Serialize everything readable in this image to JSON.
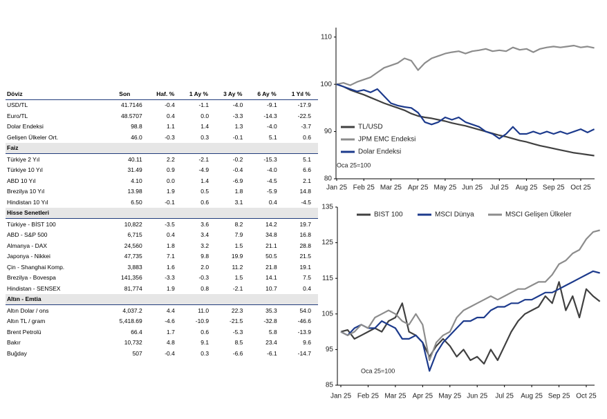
{
  "table": {
    "header": [
      "Döviz",
      "Son",
      "Haf. %",
      "1 Ay %",
      "3 Ay %",
      "6 Ay %",
      "1 Yıl %"
    ],
    "groups": [
      {
        "rows": [
          [
            "USD/TL",
            "41.7146",
            "-0.4",
            "-1.1",
            "-4.0",
            "-9.1",
            "-17.9"
          ],
          [
            "Euro/TL",
            "48.5707",
            "0.4",
            "0.0",
            "-3.3",
            "-14.3",
            "-22.5"
          ],
          [
            "Dolar Endeksi",
            "98.8",
            "1.1",
            "1.4",
            "1.3",
            "-4.0",
            "-3.7"
          ],
          [
            "Gelişen Ülkeler Ort.",
            "46.0",
            "-0.3",
            "0.3",
            "-0.1",
            "5.1",
            "0.6"
          ]
        ]
      },
      {
        "title": "Faiz",
        "rows": [
          [
            "Türkiye 2 Yıl",
            "40.11",
            "2.2",
            "-2.1",
            "-0.2",
            "-15.3",
            "5.1"
          ],
          [
            "Türkiye 10 Yıl",
            "31.49",
            "0.9",
            "-4.9",
            "-0.4",
            "-4.0",
            "6.6"
          ],
          [
            "ABD 10 Yıl",
            "4.10",
            "0.0",
            "1.4",
            "-6.9",
            "-4.5",
            "2.1"
          ],
          [
            "Brezilya 10 Yıl",
            "13.98",
            "1.9",
            "0.5",
            "1.8",
            "-5.9",
            "14.8"
          ],
          [
            "Hindistan 10 Yıl",
            "6.50",
            "-0.1",
            "0.6",
            "3.1",
            "0.4",
            "-4.5"
          ]
        ]
      },
      {
        "title": "Hisse Senetleri",
        "rows": [
          [
            "Türkiye - BİST 100",
            "10,822",
            "-3.5",
            "3.6",
            "8.2",
            "14.2",
            "19.7"
          ],
          [
            "ABD - S&P 500",
            "6,715",
            "0.4",
            "3.4",
            "7.9",
            "34.8",
            "16.8"
          ],
          [
            "Almanya - DAX",
            "24,560",
            "1.8",
            "3.2",
            "1.5",
            "21.1",
            "28.8"
          ],
          [
            "Japonya - Nikkei",
            "47,735",
            "7.1",
            "9.8",
            "19.9",
            "50.5",
            "21.5"
          ],
          [
            "Çin - Shanghai Komp.",
            "3,883",
            "1.6",
            "2.0",
            "11.2",
            "21.8",
            "19.1"
          ],
          [
            "Brezilya - Bovespa",
            "141,356",
            "-3.3",
            "-0.3",
            "1.5",
            "14.1",
            "7.5"
          ],
          [
            "Hindistan - SENSEX",
            "81,774",
            "1.9",
            "0.8",
            "-2.1",
            "10.7",
            "0.4"
          ]
        ]
      },
      {
        "title": "Altın - Emtia",
        "rows": [
          [
            "Altın Dolar / ons",
            "4,037.2",
            "4.4",
            "11.0",
            "22.3",
            "35.3",
            "54.0"
          ],
          [
            "Altın TL / gram",
            "5,418.69",
            "-4.6",
            "-10.9",
            "-21.5",
            "-32.8",
            "-46.6"
          ],
          [
            "Brent Petrolü",
            "66.4",
            "1.7",
            "0.6",
            "-5.3",
            "5.8",
            "-13.9"
          ],
          [
            "Bakır",
            "10,732",
            "4.8",
            "9.1",
            "8.5",
            "23.4",
            "9.6"
          ],
          [
            "Buğday",
            "507",
            "-0.4",
            "0.3",
            "-6.6",
            "-6.1",
            "-14.7"
          ]
        ]
      }
    ]
  },
  "chart_data": [
    {
      "type": "line",
      "annotation": "Oca 25=100",
      "legend": "lower left",
      "categories": [
        "Jan 25",
        null,
        null,
        null,
        "Feb 25",
        null,
        null,
        null,
        "Mar 25",
        null,
        null,
        null,
        "Apr 25",
        null,
        null,
        null,
        "May 25",
        null,
        null,
        null,
        "Jun 25",
        null,
        null,
        null,
        "Jul 25",
        null,
        null,
        null,
        "Aug 25",
        null,
        null,
        null,
        "Sep 25",
        null,
        null,
        null,
        "Oct 25",
        null,
        null
      ],
      "ylim": [
        80,
        112
      ],
      "yticks": [
        80,
        90,
        100,
        110
      ],
      "series": [
        {
          "name": "TL/USD",
          "color": "#404040",
          "values": [
            100,
            99.5,
            98.8,
            98.3,
            97.8,
            97.2,
            96.6,
            96,
            95.5,
            95,
            94.5,
            93.8,
            93.3,
            93,
            92.8,
            92.5,
            92.2,
            91.8,
            91.5,
            91.2,
            90.8,
            90.4,
            90,
            89.6,
            89.2,
            88.9,
            88.5,
            88.1,
            87.8,
            87.4,
            87,
            86.7,
            86.4,
            86.1,
            85.8,
            85.5,
            85.3,
            85.1,
            84.9
          ]
        },
        {
          "name": "JPM EMC Endeksi",
          "color": "#8c8c8c",
          "values": [
            100,
            100.3,
            99.8,
            100.5,
            101,
            101.5,
            102.5,
            103.5,
            104,
            104.5,
            105.5,
            105,
            103,
            104.5,
            105.5,
            106,
            106.5,
            106.8,
            107,
            106.5,
            107,
            107.2,
            107.5,
            107,
            107.2,
            107,
            107.8,
            107.3,
            107.5,
            106.8,
            107.5,
            107.8,
            108,
            107.8,
            108,
            108.2,
            107.8,
            108,
            107.7
          ]
        },
        {
          "name": "Dolar Endeksi",
          "color": "#1c3a8c",
          "values": [
            100,
            99.5,
            99,
            98.5,
            98.8,
            98.3,
            99,
            97.5,
            96,
            95.5,
            95.2,
            95,
            94,
            92,
            91.5,
            92,
            93,
            92.5,
            93,
            92,
            91.5,
            91,
            90,
            89.5,
            88.5,
            89.5,
            91,
            89.5,
            89.5,
            90,
            89.5,
            90,
            89.5,
            90,
            89.5,
            90,
            90.5,
            89.8,
            90.5
          ]
        }
      ]
    },
    {
      "type": "line",
      "annotation": "Oca 25=100",
      "legend": "top",
      "categories": [
        "Jan 25",
        null,
        null,
        null,
        "Feb 25",
        null,
        null,
        null,
        "Mar 25",
        null,
        null,
        null,
        "Apr 25",
        null,
        null,
        null,
        "May 25",
        null,
        null,
        null,
        "Jun 25",
        null,
        null,
        null,
        "Jul 25",
        null,
        null,
        null,
        "Aug 25",
        null,
        null,
        null,
        "Sep 25",
        null,
        null,
        null,
        "Oct 25",
        null,
        null
      ],
      "ylim": [
        85,
        135
      ],
      "yticks": [
        85,
        95,
        105,
        115,
        125,
        135
      ],
      "series": [
        {
          "name": "BIST 100",
          "color": "#404040",
          "values": [
            100,
            100.5,
            98,
            99,
            100,
            101,
            100,
            103,
            104,
            108,
            100,
            99,
            97,
            93,
            96,
            98,
            96,
            93,
            95,
            92,
            93,
            91,
            95,
            92,
            96,
            100,
            103,
            105,
            106,
            107,
            110,
            108,
            114,
            106,
            110,
            104,
            112,
            110,
            108.5
          ]
        },
        {
          "name": "MSCI Dünya",
          "color": "#1c3a8c",
          "values": [
            100,
            99,
            101,
            102,
            101,
            101,
            103,
            102,
            101,
            98,
            98,
            99,
            97,
            89,
            94,
            97,
            99,
            101,
            103,
            103,
            104,
            104,
            106,
            107,
            107,
            108,
            108,
            109,
            109,
            110,
            111,
            111,
            112,
            113,
            114,
            115,
            116,
            117,
            116.5
          ]
        },
        {
          "name": "MSCI Gelişen Ülkeler",
          "color": "#8c8c8c",
          "values": [
            100,
            99,
            100,
            102,
            101,
            104,
            105,
            106,
            105,
            103,
            102,
            105,
            102,
            92,
            97,
            99,
            100,
            104,
            106,
            107,
            108,
            109,
            110,
            109,
            110,
            111,
            112,
            112,
            113,
            114,
            114,
            116,
            119,
            120,
            122,
            123,
            126,
            128,
            128.5
          ]
        }
      ]
    }
  ]
}
